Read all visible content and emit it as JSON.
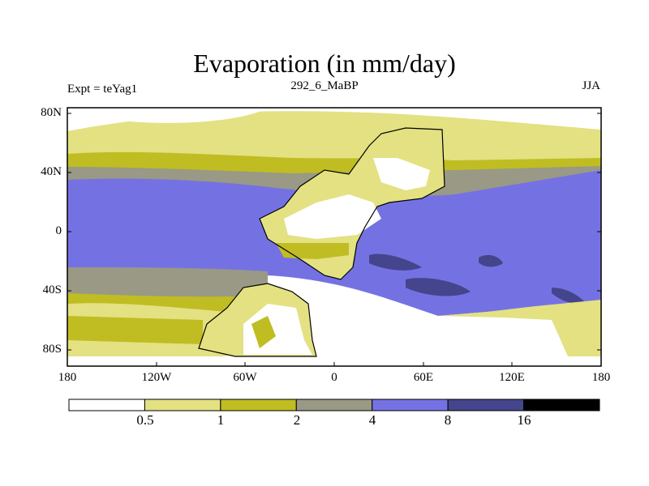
{
  "title": "Evaporation (in mm/day)",
  "subtitle_left": "Expt = teYag1",
  "subtitle_center": "292_6_MaBP",
  "subtitle_right": "JJA",
  "map": {
    "projection": "cylindrical equidistant",
    "lon_range": [
      -180,
      180
    ],
    "lat_range": [
      -90,
      90
    ],
    "y_ticks": [
      "80N",
      "40N",
      "0",
      "40S",
      "80S"
    ],
    "x_ticks": [
      "180",
      "120W",
      "60W",
      "0",
      "60E",
      "120E",
      "180"
    ]
  },
  "colorbar": {
    "levels": [
      "0.5",
      "1",
      "2",
      "4",
      "8",
      "16"
    ],
    "colors": [
      "#ffffff",
      "#e3e182",
      "#bfbd22",
      "#999985",
      "#7472e3",
      "#45458d",
      "#000000"
    ]
  }
}
